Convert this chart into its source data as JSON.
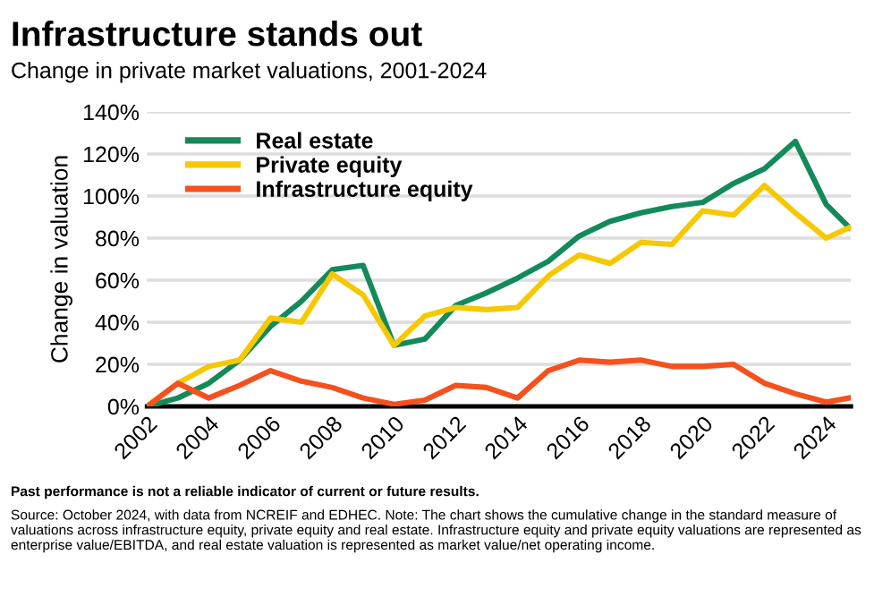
{
  "chart_data": {
    "type": "line",
    "title": "Infrastructure stands out",
    "subtitle": "Change in private market valuations, 2001-2024",
    "ylabel": "Change in valuation",
    "x": [
      2002,
      2003,
      2004,
      2005,
      2006,
      2007,
      2008,
      2009,
      2010,
      2011,
      2012,
      2013,
      2014,
      2015,
      2016,
      2017,
      2018,
      2019,
      2020,
      2021,
      2022,
      2023,
      2024,
      2024.75
    ],
    "series": [
      {
        "name": "Real estate",
        "color": "#138a5a",
        "values": [
          0,
          4,
          11,
          22,
          38,
          50,
          65,
          67,
          29,
          32,
          48,
          54,
          61,
          69,
          81,
          88,
          92,
          95,
          97,
          106,
          113,
          126,
          96,
          85
        ]
      },
      {
        "name": "Private equity",
        "color": "#f5c800",
        "values": [
          0,
          11,
          19,
          22,
          42,
          40,
          63,
          53,
          29,
          43,
          47,
          46,
          47,
          62,
          72,
          68,
          78,
          77,
          93,
          91,
          105,
          92,
          80,
          85
        ]
      },
      {
        "name": "Infrastructure equity",
        "color": "#f4511e",
        "values": [
          0,
          11,
          4,
          10,
          17,
          12,
          9,
          4,
          1,
          3,
          10,
          9,
          4,
          17,
          22,
          21,
          22,
          19,
          19,
          20,
          11,
          6,
          2,
          4
        ]
      }
    ],
    "xlim": [
      2002,
      2024.8
    ],
    "xticks": [
      2002,
      2004,
      2006,
      2008,
      2010,
      2012,
      2014,
      2016,
      2018,
      2020,
      2022,
      2024
    ],
    "ylim": [
      0,
      140
    ],
    "yticks": [
      {
        "value": 0,
        "label": "0%"
      },
      {
        "value": 20,
        "label": "20%"
      },
      {
        "value": 40,
        "label": "40%"
      },
      {
        "value": 60,
        "label": "60%"
      },
      {
        "value": 80,
        "label": "80%"
      },
      {
        "value": 100,
        "label": "100%"
      },
      {
        "value": 120,
        "label": "120%"
      },
      {
        "value": 140,
        "label": "140%"
      }
    ],
    "grid": "y",
    "legend": "top left",
    "marker": "none",
    "line_style": "solid",
    "annotations": [
      "Past performance is not a reliable indicator of current or future results.",
      "Source: October 2024, with data from NCREIF and EDHEC. Note: The chart shows the cumulative change in the standard measure of valuations across infrastructure equity, private equity and real estate. Infrastructure equity and private equity valuations are represented as enterprise value/EBITDA, and real estate valuation is represented as market value/net operating income."
    ]
  }
}
